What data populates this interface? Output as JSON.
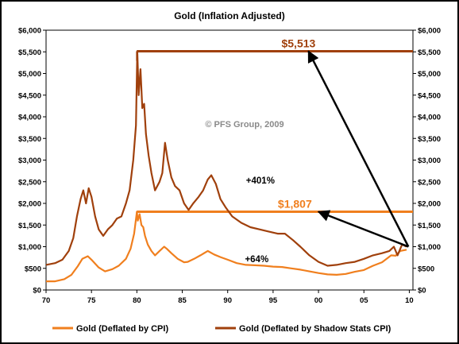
{
  "chart_data": {
    "type": "line",
    "title": "Gold (Inflation Adjusted)",
    "watermark": "© PFS Group, 2009",
    "xlabel": "",
    "ylabel": "",
    "xlim": [
      1970,
      2010.4
    ],
    "ylim": [
      0,
      6000
    ],
    "x_ticks": [
      1970,
      1975,
      1980,
      1985,
      1990,
      1995,
      2000,
      2005,
      2010
    ],
    "x_tick_labels": [
      "70",
      "75",
      "80",
      "85",
      "90",
      "95",
      "00",
      "05",
      "10"
    ],
    "y_ticks": [
      0,
      500,
      1000,
      1500,
      2000,
      2500,
      3000,
      3500,
      4000,
      4500,
      5000,
      5500,
      6000
    ],
    "y_tick_labels": [
      "$0",
      "$500",
      "$1,000",
      "$1,500",
      "$2,000",
      "$2,500",
      "$3,000",
      "$3,500",
      "$4,000",
      "$4,500",
      "$5,000",
      "$5,500",
      "$6,000"
    ],
    "grid": false,
    "legend_position": "bottom",
    "series": [
      {
        "name": "Gold (Deflated by CPI)",
        "color": "#f07f1e",
        "x": [
          1970,
          1971,
          1972,
          1972.8,
          1973.5,
          1974,
          1974.6,
          1975,
          1975.8,
          1976.5,
          1977.3,
          1978,
          1978.8,
          1979.3,
          1979.7,
          1980.0,
          1980.1,
          1980.3,
          1980.5,
          1980.7,
          1980.9,
          1981.2,
          1981.6,
          1982,
          1982.5,
          1983.0,
          1983.3,
          1983.8,
          1984.5,
          1985.2,
          1985.6,
          1986.3,
          1987,
          1987.8,
          1988.5,
          1989.2,
          1990,
          1991,
          1992,
          1993,
          1994,
          1995,
          1996,
          1997,
          1998,
          1999,
          2000,
          2001,
          2002,
          2003,
          2004,
          2005,
          2006,
          2007,
          2008,
          2008.5,
          2009,
          2009.7
        ],
        "y": [
          200,
          200,
          250,
          350,
          550,
          720,
          780,
          700,
          520,
          430,
          480,
          560,
          720,
          950,
          1300,
          1807,
          1600,
          1750,
          1500,
          1450,
          1250,
          1050,
          900,
          800,
          900,
          1000,
          950,
          850,
          720,
          640,
          650,
          720,
          800,
          900,
          820,
          760,
          700,
          620,
          580,
          570,
          560,
          540,
          530,
          500,
          470,
          430,
          390,
          360,
          350,
          370,
          420,
          460,
          560,
          640,
          800,
          790,
          900,
          930
        ]
      },
      {
        "name": "Gold (Deflated by Shadow Stats CPI)",
        "color": "#a0400c",
        "x": [
          1970,
          1971,
          1971.8,
          1972.5,
          1973.0,
          1973.4,
          1973.8,
          1974.1,
          1974.4,
          1974.7,
          1975.0,
          1975.4,
          1975.8,
          1976.3,
          1976.8,
          1977.3,
          1977.8,
          1978.3,
          1978.8,
          1979.2,
          1979.6,
          1979.9,
          1980.05,
          1980.2,
          1980.4,
          1980.6,
          1980.8,
          1981.0,
          1981.3,
          1981.6,
          1982.0,
          1982.5,
          1982.8,
          1983.1,
          1983.4,
          1983.8,
          1984.2,
          1984.7,
          1985.2,
          1985.7,
          1986.2,
          1986.8,
          1987.3,
          1987.8,
          1988.2,
          1988.7,
          1989.2,
          1989.8,
          1990.5,
          1991.5,
          1992.5,
          1993.5,
          1994.5,
          1995.5,
          1996.3,
          1997.2,
          1998,
          1999,
          2000,
          2001,
          2002,
          2003,
          2004,
          2005,
          2006,
          2007,
          2007.8,
          2008.3,
          2008.7,
          2009.2,
          2009.7
        ],
        "y": [
          580,
          620,
          700,
          900,
          1200,
          1700,
          2100,
          2300,
          2000,
          2350,
          2150,
          1700,
          1400,
          1250,
          1400,
          1500,
          1650,
          1700,
          2000,
          2300,
          3000,
          3800,
          5513,
          4500,
          5100,
          4200,
          4300,
          3600,
          3100,
          2700,
          2300,
          2500,
          2700,
          3400,
          3000,
          2600,
          2400,
          2300,
          2000,
          1850,
          2000,
          2150,
          2300,
          2550,
          2650,
          2450,
          2100,
          1900,
          1700,
          1550,
          1450,
          1400,
          1350,
          1300,
          1300,
          1150,
          1000,
          800,
          650,
          560,
          580,
          620,
          650,
          720,
          800,
          850,
          900,
          1000,
          800,
          1050,
          1000
        ]
      }
    ],
    "reference_lines": [
      {
        "value": 5513,
        "label": "$5,513",
        "color": "#a0400c",
        "from_x": 1980.0
      },
      {
        "value": 1807,
        "label": "$1,807",
        "color": "#f07f1e",
        "from_x": 1980.0
      }
    ],
    "annotations": [
      {
        "text": "+401%",
        "from": [
          2009.9,
          1000
        ],
        "to": [
          1998.9,
          5513
        ]
      },
      {
        "text": "+64%",
        "from": [
          2009.9,
          1000
        ],
        "to": [
          2000.0,
          1807
        ]
      }
    ]
  }
}
